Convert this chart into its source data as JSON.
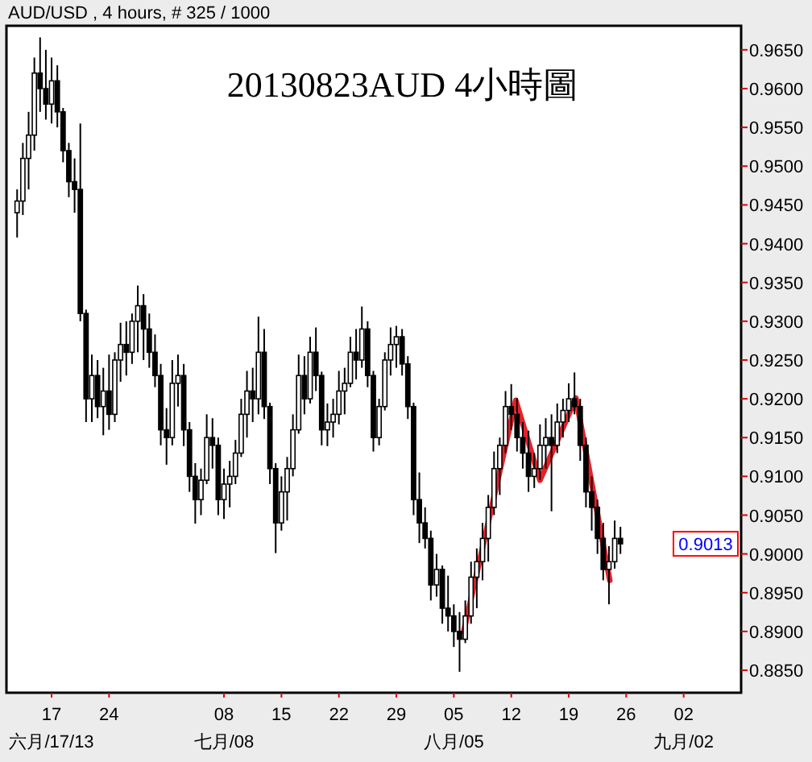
{
  "chart_data": {
    "type": "candlestick",
    "title": "20130823AUD 4小時圖",
    "subtitle": "AUD/USD , 4 hours, # 325 / 1000",
    "color": "#000000",
    "x": [
      "2013-06-12T19:12",
      "2013-06-13T12:00",
      "2013-06-14T04:48",
      "2013-06-14T21:36",
      "2013-06-15T14:24",
      "2013-06-16T07:12",
      "2013-06-17T00:00",
      "2013-06-17T16:48",
      "2013-06-18T09:36",
      "2013-06-19T02:24",
      "2013-06-19T19:12",
      "2013-06-20T12:00",
      "2013-06-21T04:48",
      "2013-06-21T21:36",
      "2013-06-22T14:24",
      "2013-06-23T07:12",
      "2013-06-24T00:00",
      "2013-06-24T16:48",
      "2013-06-25T09:36",
      "2013-06-26T02:24",
      "2013-06-26T19:12",
      "2013-06-27T12:00",
      "2013-06-28T04:48",
      "2013-06-28T21:36",
      "2013-06-29T14:24",
      "2013-06-30T07:12",
      "2013-07-01T00:00",
      "2013-07-01T16:48",
      "2013-07-02T09:36",
      "2013-07-03T02:24",
      "2013-07-03T19:12",
      "2013-07-04T12:00",
      "2013-07-05T04:48",
      "2013-07-05T21:36",
      "2013-07-06T14:24",
      "2013-07-07T07:12",
      "2013-07-08T00:00",
      "2013-07-08T16:48",
      "2013-07-09T09:36",
      "2013-07-10T02:24",
      "2013-07-10T19:12",
      "2013-07-11T12:00",
      "2013-07-12T04:48",
      "2013-07-12T21:36",
      "2013-07-13T14:24",
      "2013-07-14T07:12",
      "2013-07-15T00:00",
      "2013-07-15T16:48",
      "2013-07-16T09:36",
      "2013-07-17T02:24",
      "2013-07-17T19:12",
      "2013-07-18T12:00",
      "2013-07-19T04:48",
      "2013-07-19T21:36",
      "2013-07-20T14:24",
      "2013-07-21T07:12",
      "2013-07-22T00:00",
      "2013-07-22T16:48",
      "2013-07-23T09:36",
      "2013-07-24T02:24",
      "2013-07-24T19:12",
      "2013-07-25T12:00",
      "2013-07-26T04:48",
      "2013-07-26T21:36",
      "2013-07-27T14:24",
      "2013-07-28T07:12",
      "2013-07-29T00:00",
      "2013-07-29T16:48",
      "2013-07-30T09:36",
      "2013-07-31T02:24",
      "2013-07-31T19:12",
      "2013-08-01T12:00",
      "2013-08-02T04:48",
      "2013-08-02T21:36",
      "2013-08-03T14:24",
      "2013-08-04T07:12",
      "2013-08-05T00:00",
      "2013-08-05T16:48",
      "2013-08-06T09:36",
      "2013-08-07T02:24",
      "2013-08-07T19:12",
      "2013-08-08T12:00",
      "2013-08-09T04:48",
      "2013-08-09T21:36",
      "2013-08-10T14:24",
      "2013-08-11T07:12",
      "2013-08-12T00:00",
      "2013-08-12T16:48",
      "2013-08-13T09:36",
      "2013-08-14T02:24",
      "2013-08-14T19:12",
      "2013-08-15T12:00",
      "2013-08-16T04:48",
      "2013-08-16T21:36",
      "2013-08-17T14:24",
      "2013-08-18T07:12",
      "2013-08-19T00:00",
      "2013-08-19T16:48",
      "2013-08-20T09:36",
      "2013-08-21T02:24",
      "2013-08-21T19:12",
      "2013-08-22T12:00",
      "2013-08-23T04:48",
      "2013-08-23T21:36",
      "2013-08-24T14:24",
      "2013-08-25T07:12"
    ],
    "ohlc": [
      [
        0.944,
        0.947,
        0.9408,
        0.9455
      ],
      [
        0.9455,
        0.953,
        0.9437,
        0.951
      ],
      [
        0.951,
        0.957,
        0.947,
        0.954
      ],
      [
        0.954,
        0.964,
        0.952,
        0.962
      ],
      [
        0.962,
        0.9666,
        0.957,
        0.96
      ],
      [
        0.96,
        0.965,
        0.956,
        0.958
      ],
      [
        0.958,
        0.964,
        0.9555,
        0.961
      ],
      [
        0.961,
        0.963,
        0.955,
        0.957
      ],
      [
        0.957,
        0.9575,
        0.9505,
        0.952
      ],
      [
        0.952,
        0.953,
        0.946,
        0.948
      ],
      [
        0.948,
        0.951,
        0.944,
        0.947
      ],
      [
        0.947,
        0.9555,
        0.93,
        0.931
      ],
      [
        0.931,
        0.9315,
        0.917,
        0.92
      ],
      [
        0.92,
        0.9257,
        0.917,
        0.923
      ],
      [
        0.923,
        0.925,
        0.9175,
        0.919
      ],
      [
        0.919,
        0.924,
        0.9153,
        0.921
      ],
      [
        0.921,
        0.9257,
        0.916,
        0.918
      ],
      [
        0.918,
        0.926,
        0.917,
        0.925
      ],
      [
        0.925,
        0.9298,
        0.9222,
        0.927
      ],
      [
        0.927,
        0.93,
        0.923,
        0.926
      ],
      [
        0.926,
        0.931,
        0.9245,
        0.93
      ],
      [
        0.93,
        0.9346,
        0.926,
        0.932
      ],
      [
        0.932,
        0.9335,
        0.925,
        0.929
      ],
      [
        0.929,
        0.931,
        0.924,
        0.926
      ],
      [
        0.926,
        0.9283,
        0.9215,
        0.923
      ],
      [
        0.923,
        0.9245,
        0.914,
        0.916
      ],
      [
        0.916,
        0.9188,
        0.9115,
        0.915
      ],
      [
        0.915,
        0.925,
        0.914,
        0.922
      ],
      [
        0.922,
        0.9257,
        0.919,
        0.923
      ],
      [
        0.923,
        0.9245,
        0.9139,
        0.916
      ],
      [
        0.916,
        0.917,
        0.908,
        0.91
      ],
      [
        0.91,
        0.9117,
        0.9039,
        0.907
      ],
      [
        0.907,
        0.911,
        0.905,
        0.9095
      ],
      [
        0.9095,
        0.918,
        0.909,
        0.915
      ],
      [
        0.915,
        0.9175,
        0.911,
        0.914
      ],
      [
        0.914,
        0.915,
        0.905,
        0.907
      ],
      [
        0.907,
        0.911,
        0.9045,
        0.909
      ],
      [
        0.909,
        0.912,
        0.906,
        0.91
      ],
      [
        0.91,
        0.9147,
        0.909,
        0.913
      ],
      [
        0.913,
        0.92,
        0.9125,
        0.918
      ],
      [
        0.918,
        0.9236,
        0.915,
        0.921
      ],
      [
        0.921,
        0.924,
        0.917,
        0.92
      ],
      [
        0.92,
        0.9306,
        0.918,
        0.926
      ],
      [
        0.926,
        0.929,
        0.9174,
        0.919
      ],
      [
        0.919,
        0.9195,
        0.909,
        0.911
      ],
      [
        0.911,
        0.9117,
        0.9001,
        0.904
      ],
      [
        0.904,
        0.91,
        0.903,
        0.908
      ],
      [
        0.908,
        0.9125,
        0.9043,
        0.911
      ],
      [
        0.911,
        0.918,
        0.91,
        0.916
      ],
      [
        0.916,
        0.9257,
        0.9155,
        0.923
      ],
      [
        0.923,
        0.9255,
        0.918,
        0.92
      ],
      [
        0.92,
        0.928,
        0.9194,
        0.926
      ],
      [
        0.926,
        0.9292,
        0.921,
        0.923
      ],
      [
        0.923,
        0.9235,
        0.914,
        0.916
      ],
      [
        0.916,
        0.9194,
        0.9139,
        0.917
      ],
      [
        0.917,
        0.92,
        0.915,
        0.918
      ],
      [
        0.918,
        0.9236,
        0.9167,
        0.921
      ],
      [
        0.921,
        0.924,
        0.918,
        0.922
      ],
      [
        0.922,
        0.928,
        0.9215,
        0.926
      ],
      [
        0.926,
        0.929,
        0.9225,
        0.925
      ],
      [
        0.925,
        0.9319,
        0.924,
        0.929
      ],
      [
        0.929,
        0.93,
        0.9215,
        0.923
      ],
      [
        0.923,
        0.9236,
        0.9132,
        0.915
      ],
      [
        0.915,
        0.92,
        0.914,
        0.919
      ],
      [
        0.919,
        0.926,
        0.9185,
        0.925
      ],
      [
        0.925,
        0.9292,
        0.923,
        0.927
      ],
      [
        0.927,
        0.9294,
        0.924,
        0.928
      ],
      [
        0.928,
        0.929,
        0.923,
        0.9245
      ],
      [
        0.9245,
        0.9255,
        0.9174,
        0.919
      ],
      [
        0.919,
        0.9195,
        0.905,
        0.907
      ],
      [
        0.907,
        0.9105,
        0.9014,
        0.904
      ],
      [
        0.904,
        0.906,
        0.9007,
        0.902
      ],
      [
        0.902,
        0.903,
        0.894,
        0.896
      ],
      [
        0.896,
        0.9,
        0.8945,
        0.898
      ],
      [
        0.898,
        0.8985,
        0.891,
        0.893
      ],
      [
        0.893,
        0.8972,
        0.89,
        0.892
      ],
      [
        0.892,
        0.8935,
        0.888,
        0.89
      ],
      [
        0.89,
        0.8925,
        0.8848,
        0.889
      ],
      [
        0.889,
        0.894,
        0.8885,
        0.892
      ],
      [
        0.892,
        0.899,
        0.891,
        0.897
      ],
      [
        0.897,
        0.9007,
        0.893,
        0.899
      ],
      [
        0.899,
        0.904,
        0.8966,
        0.902
      ],
      [
        0.902,
        0.9076,
        0.899,
        0.906
      ],
      [
        0.906,
        0.9132,
        0.905,
        0.911
      ],
      [
        0.911,
        0.915,
        0.9076,
        0.914
      ],
      [
        0.914,
        0.921,
        0.913,
        0.919
      ],
      [
        0.919,
        0.9219,
        0.916,
        0.918
      ],
      [
        0.918,
        0.9201,
        0.9132,
        0.915
      ],
      [
        0.915,
        0.917,
        0.911,
        0.913
      ],
      [
        0.913,
        0.9159,
        0.908,
        0.91
      ],
      [
        0.91,
        0.913,
        0.9085,
        0.911
      ],
      [
        0.911,
        0.9167,
        0.9095,
        0.914
      ],
      [
        0.914,
        0.9175,
        0.911,
        0.915
      ],
      [
        0.915,
        0.918,
        0.9055,
        0.914
      ],
      [
        0.914,
        0.9194,
        0.913,
        0.917
      ],
      [
        0.917,
        0.92,
        0.915,
        0.9185
      ],
      [
        0.9185,
        0.922,
        0.917,
        0.92
      ],
      [
        0.92,
        0.9234,
        0.918,
        0.919
      ],
      [
        0.919,
        0.92,
        0.912,
        0.914
      ],
      [
        0.914,
        0.915,
        0.906,
        0.908
      ],
      [
        0.908,
        0.91,
        0.903,
        0.906
      ],
      [
        0.906,
        0.907,
        0.9,
        0.902
      ],
      [
        0.902,
        0.904,
        0.8966,
        0.898
      ],
      [
        0.898,
        0.901,
        0.8935,
        0.899
      ],
      [
        0.899,
        0.9043,
        0.8981,
        0.902
      ],
      [
        0.902,
        0.9035,
        0.9,
        0.9013
      ]
    ],
    "series": [
      {
        "type": "line",
        "color": "#e8202a",
        "x": [
          "2013-08-06T05:00",
          "2013-08-12T13:00",
          "2013-08-15T12:00",
          "2013-08-19T21:00",
          "2013-08-24T00:00"
        ],
        "values": [
          0.89,
          0.9198,
          0.9095,
          0.9201,
          0.8966
        ]
      }
    ],
    "xlim": [
      "2013-06-11T12:00",
      "2013-09-09"
    ],
    "xticks": [
      {
        "value": "2013-06-17",
        "label": "17\n六月/17/13"
      },
      {
        "value": "2013-06-24",
        "label": "24"
      },
      {
        "value": "2013-07-08",
        "label": "08\n七月/08"
      },
      {
        "value": "2013-07-15",
        "label": "15"
      },
      {
        "value": "2013-07-22",
        "label": "22"
      },
      {
        "value": "2013-07-29",
        "label": "29"
      },
      {
        "value": "2013-08-05",
        "label": "05\n八月/05"
      },
      {
        "value": "2013-08-12",
        "label": "12"
      },
      {
        "value": "2013-08-19",
        "label": "19"
      },
      {
        "value": "2013-08-26",
        "label": "26"
      },
      {
        "value": "2013-09-02",
        "label": "02\n九月/02"
      }
    ],
    "ylim": [
      0.8821,
      0.9681
    ],
    "yticks": [
      {
        "value": 0.885,
        "label": "0.8850"
      },
      {
        "value": 0.89,
        "label": "0.8900"
      },
      {
        "value": 0.895,
        "label": "0.8950"
      },
      {
        "value": 0.9,
        "label": "0.9000"
      },
      {
        "value": 0.905,
        "label": "0.9050"
      },
      {
        "value": 0.91,
        "label": "0.9100"
      },
      {
        "value": 0.915,
        "label": "0.9150"
      },
      {
        "value": 0.92,
        "label": "0.9200"
      },
      {
        "value": 0.925,
        "label": "0.9250"
      },
      {
        "value": 0.93,
        "label": "0.9300"
      },
      {
        "value": 0.935,
        "label": "0.9350"
      },
      {
        "value": 0.94,
        "label": "0.9400"
      },
      {
        "value": 0.945,
        "label": "0.9450"
      },
      {
        "value": 0.95,
        "label": "0.9500"
      },
      {
        "value": 0.955,
        "label": "0.9550"
      },
      {
        "value": 0.96,
        "label": "0.9600"
      },
      {
        "value": 0.965,
        "label": "0.9650"
      }
    ],
    "annotations": [
      {
        "text": "0.9013",
        "y": 0.9013
      }
    ]
  }
}
